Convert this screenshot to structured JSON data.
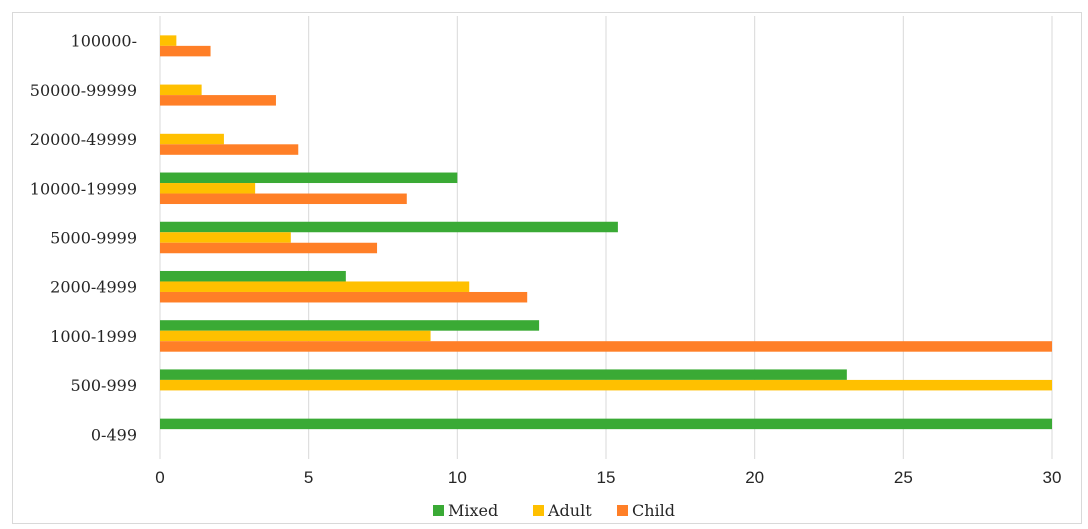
{
  "chart_data": {
    "type": "bar",
    "orientation": "horizontal",
    "categories": [
      "0-499",
      "500-999",
      "1000-1999",
      "2000-4999",
      "5000-9999",
      "10000-19999",
      "20000-49999",
      "50000-99999",
      "100000-"
    ],
    "series": [
      {
        "name": "Mixed",
        "color": "#3aaa35",
        "values": [
          30,
          23.1,
          12.75,
          6.25,
          15.4,
          10.0,
          null,
          null,
          null
        ]
      },
      {
        "name": "Adult",
        "color": "#ffc000",
        "values": [
          null,
          30,
          9.1,
          10.4,
          4.4,
          3.2,
          2.15,
          1.4,
          0.55
        ]
      },
      {
        "name": "Child",
        "color": "#ff7f27",
        "values": [
          null,
          null,
          30,
          12.35,
          7.3,
          8.3,
          4.65,
          3.9,
          1.7
        ]
      }
    ],
    "xlim": [
      0,
      30
    ],
    "xticks": [
      "0",
      "5",
      "10",
      "15",
      "20",
      "25",
      "30"
    ],
    "grid": true,
    "legend": "bottom"
  }
}
